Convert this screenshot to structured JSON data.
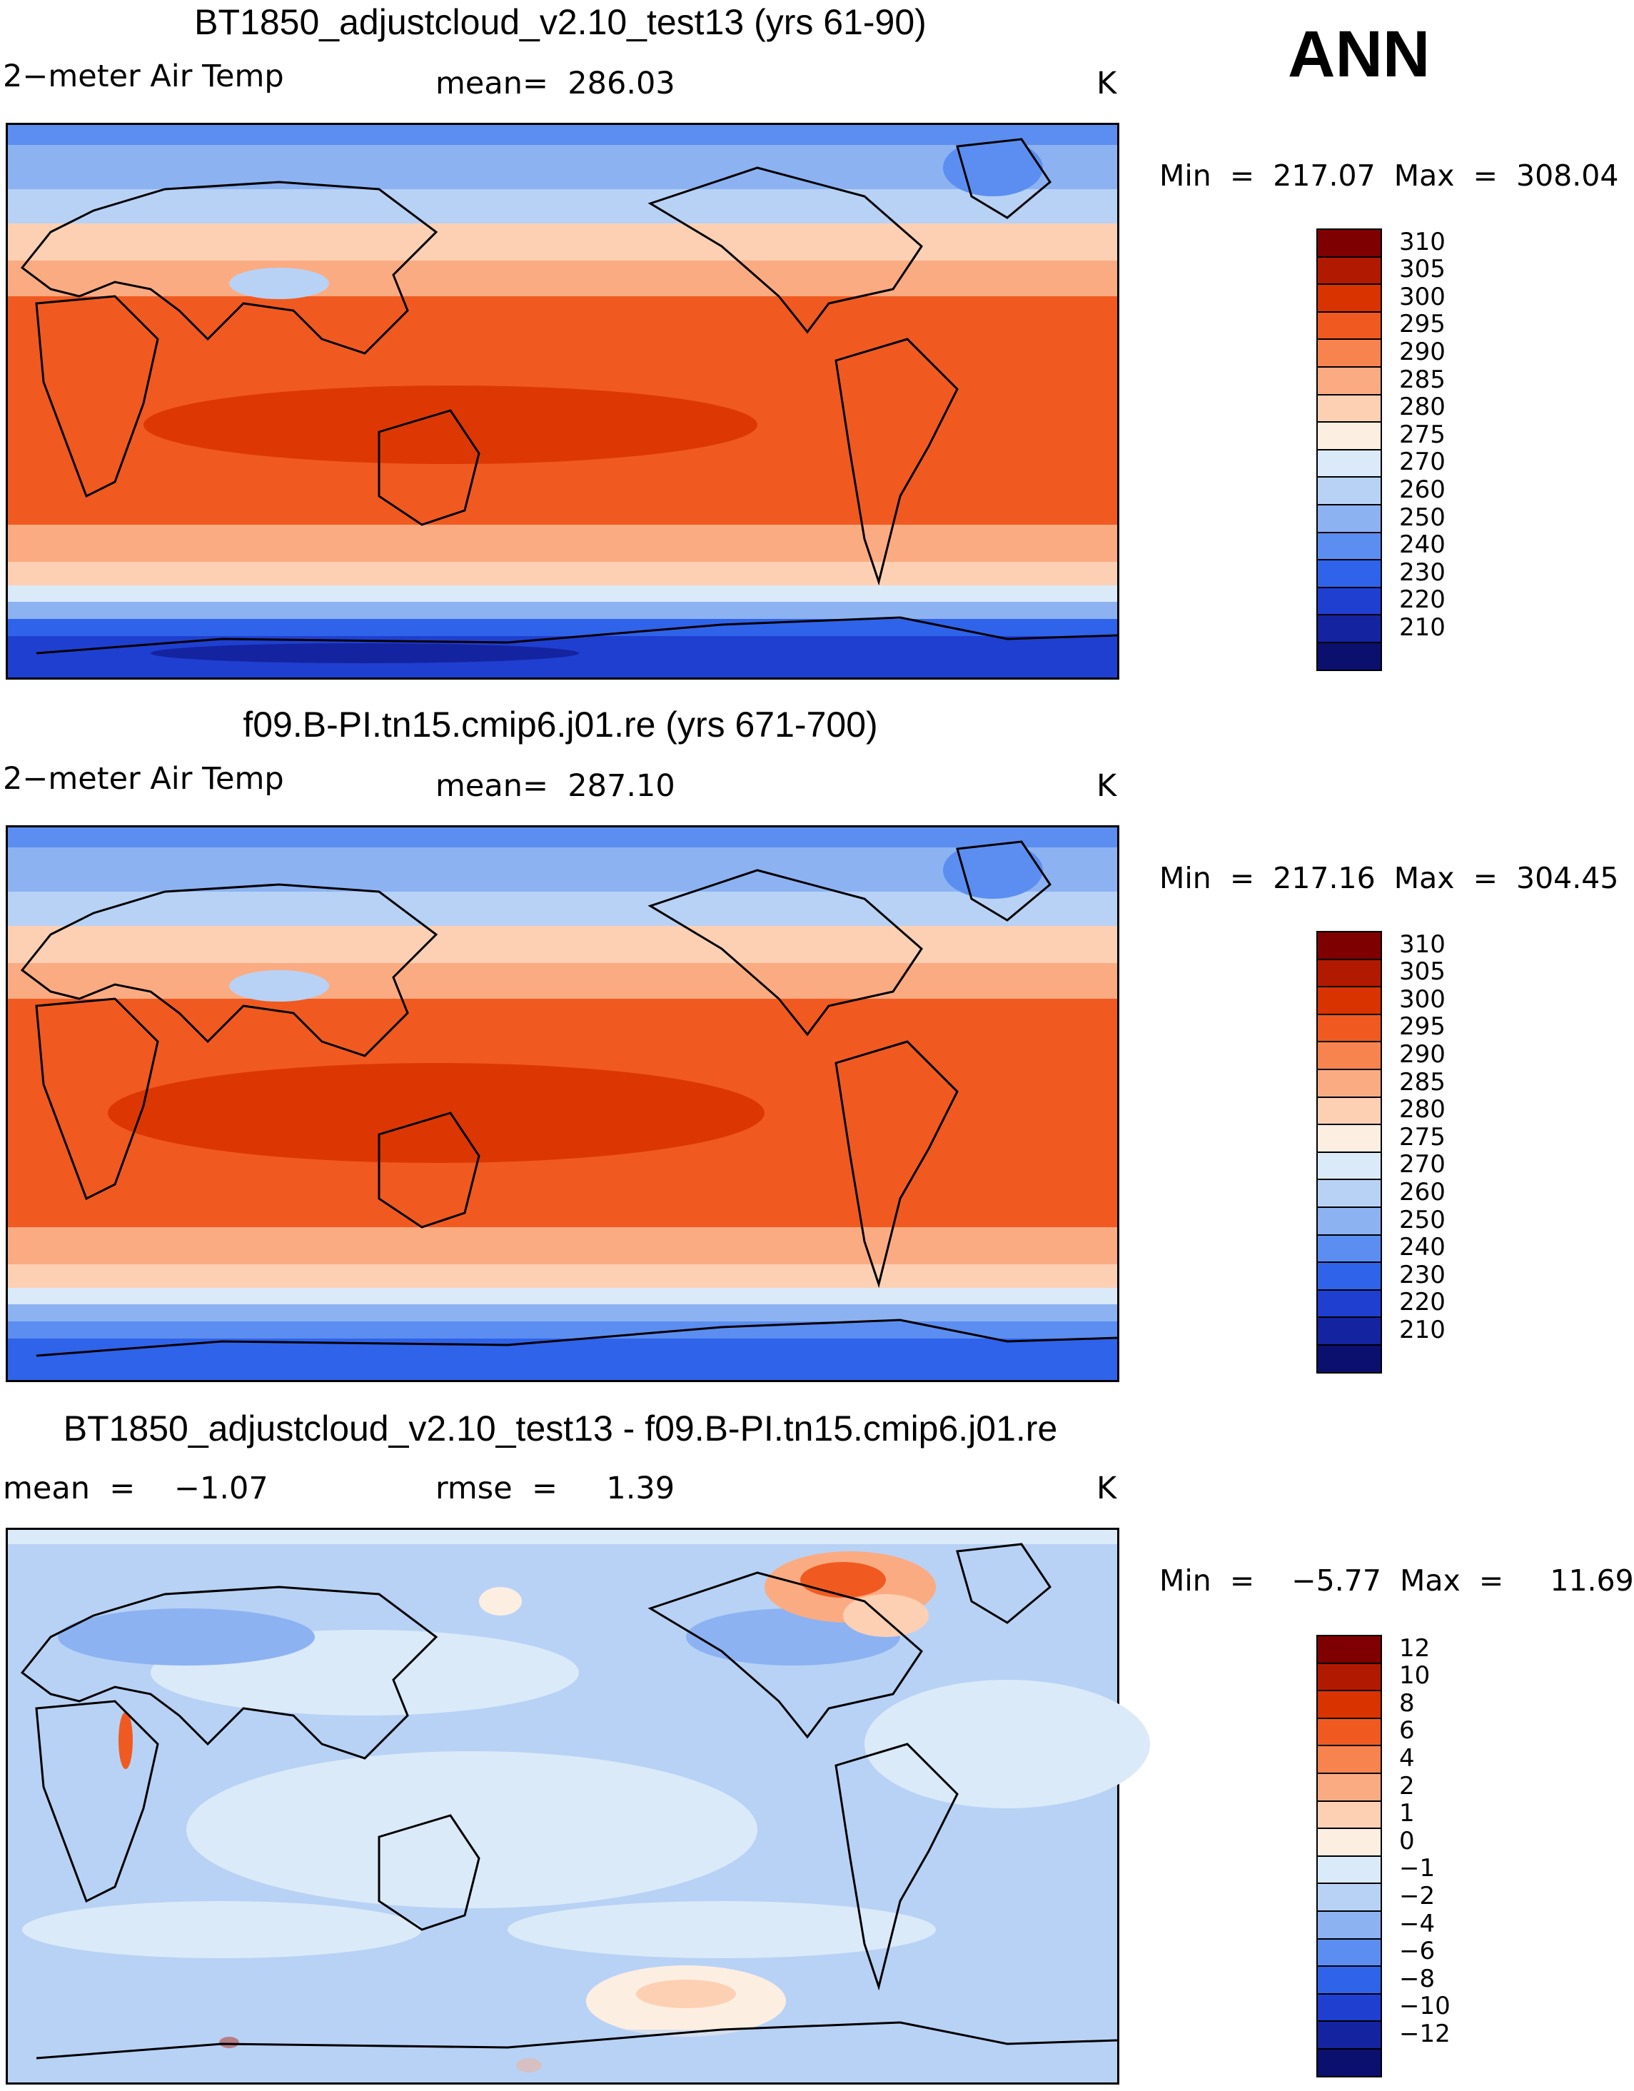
{
  "season": "ANN",
  "panels": [
    {
      "id": "top",
      "title": "BT1850_adjustcloud_v2.10_test13 (yrs 61-90)",
      "variable": "2−meter Air Temp",
      "stat1": "mean=  286.03",
      "stat2": "",
      "units": "K",
      "minmax": "Min  =  217.07  Max  =  308.04",
      "palette": "abs"
    },
    {
      "id": "middle",
      "title": "f09.B-PI.tn15.cmip6.j01.re (yrs 671-700)",
      "variable": "2−meter Air Temp",
      "stat1": "mean=  287.10",
      "stat2": "",
      "units": "K",
      "minmax": "Min  =  217.16  Max  =  304.45",
      "palette": "abs"
    },
    {
      "id": "bottom",
      "title": "BT1850_adjustcloud_v2.10_test13 - f09.B-PI.tn15.cmip6.j01.re",
      "variable": "mean  =    −1.07",
      "stat1": "rmse  =     1.39",
      "stat2": "",
      "units": "K",
      "minmax": "Min  =    −5.77  Max  =     11.69",
      "palette": "diff"
    }
  ],
  "colorbars": {
    "abs": {
      "labels": [
        "310",
        "305",
        "300",
        "295",
        "290",
        "285",
        "280",
        "275",
        "270",
        "260",
        "250",
        "240",
        "230",
        "220",
        "210"
      ],
      "colors": [
        "#7f0000",
        "#b21a00",
        "#d93300",
        "#f05a20",
        "#f7834e",
        "#fbab82",
        "#fdd0b4",
        "#fdeee2",
        "#dbeaf8",
        "#b8d2f5",
        "#8cb2f2",
        "#5b8ef0",
        "#2f63ea",
        "#1f3fd0",
        "#14239f",
        "#0b0f6e"
      ]
    },
    "diff": {
      "labels": [
        "12",
        "10",
        "8",
        "6",
        "4",
        "2",
        "1",
        "0",
        "−1",
        "−2",
        "−4",
        "−6",
        "−8",
        "−10",
        "−12"
      ],
      "colors": [
        "#7f0000",
        "#b21a00",
        "#d93300",
        "#f05a20",
        "#f7834e",
        "#fbab82",
        "#fdd0b4",
        "#fdeee2",
        "#dbeaf8",
        "#b8d2f5",
        "#8cb2f2",
        "#5b8ef0",
        "#2f63ea",
        "#1f3fd0",
        "#14239f",
        "#0b0f6e"
      ]
    }
  }
}
